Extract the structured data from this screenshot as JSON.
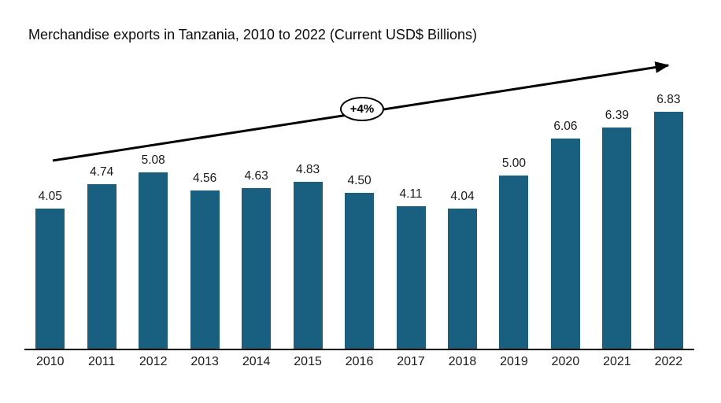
{
  "chart_data": {
    "type": "bar",
    "title": "Merchandise exports in Tanzania, 2010 to 2022 (Current USD$ Billions)",
    "categories": [
      "2010",
      "2011",
      "2012",
      "2013",
      "2014",
      "2015",
      "2016",
      "2017",
      "2018",
      "2019",
      "2020",
      "2021",
      "2022"
    ],
    "values": [
      4.05,
      4.74,
      5.08,
      4.56,
      4.63,
      4.83,
      4.5,
      4.11,
      4.04,
      5.0,
      6.06,
      6.39,
      6.83
    ],
    "data_labels": [
      "4.05",
      "4.74",
      "5.08",
      "4.56",
      "4.63",
      "4.83",
      "4.50",
      "4.11",
      "4.04",
      "5.00",
      "6.06",
      "6.39",
      "6.83"
    ],
    "xlabel": "",
    "ylabel": "",
    "ylim": [
      0,
      7.8
    ],
    "grid": false,
    "legend": "none",
    "bar_color": "#185F80",
    "axis_color": "#000000",
    "annotation": {
      "growth_label": "+4%",
      "style": "ellipse-badge-on-trend-arrow"
    }
  }
}
